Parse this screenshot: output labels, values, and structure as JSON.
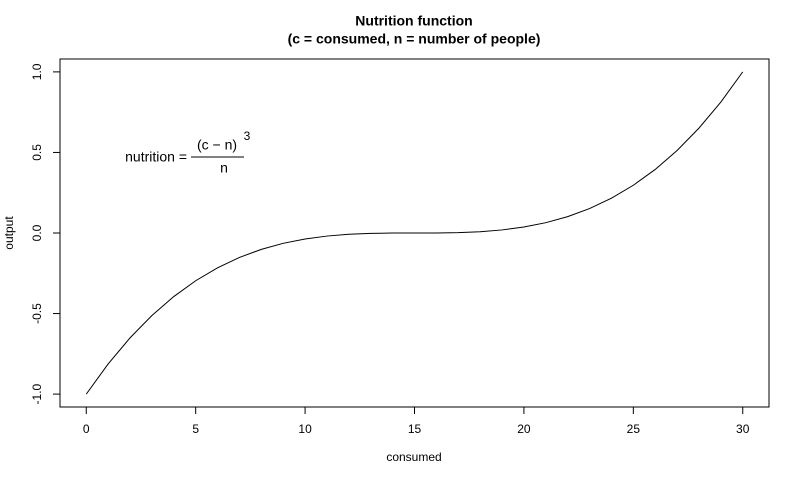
{
  "chart_data": {
    "type": "line",
    "title": "Nutrition function",
    "subtitle": "(c = consumed, n = number of people)",
    "x_label": "consumed",
    "y_label": "output",
    "annotation": {
      "lhs": "nutrition =",
      "numerator": "(c − n)",
      "exponent": "3",
      "denominator": "n"
    },
    "x": [
      0,
      1,
      2,
      3,
      4,
      5,
      6,
      7,
      8,
      9,
      10,
      11,
      12,
      13,
      14,
      15,
      16,
      17,
      18,
      19,
      20,
      21,
      22,
      23,
      24,
      25,
      26,
      27,
      28,
      29,
      30
    ],
    "values": [
      -1,
      -0.813,
      -0.651,
      -0.512,
      -0.3944,
      -0.2963,
      -0.216,
      -0.1517,
      -0.1016,
      -0.064,
      -0.037,
      -0.019,
      -0.008,
      -0.0024,
      -0.0003,
      0,
      0.0003,
      0.0024,
      0.008,
      0.019,
      0.037,
      0.064,
      0.1016,
      0.1517,
      0.216,
      0.2963,
      0.3944,
      0.512,
      0.651,
      0.813,
      1
    ],
    "color": "#000000",
    "xlim": [
      -1.2,
      31.2
    ],
    "ylim": [
      -1.08,
      1.08
    ],
    "xticks": [
      0,
      5,
      10,
      15,
      20,
      25,
      30
    ],
    "yticks": [
      {
        "value": -1,
        "label": "-1.0"
      },
      {
        "value": -0.5,
        "label": "-0.5"
      },
      {
        "value": 0,
        "label": "0.0"
      },
      {
        "value": 0.5,
        "label": "0.5"
      },
      {
        "value": 1,
        "label": "1.0"
      }
    ]
  }
}
